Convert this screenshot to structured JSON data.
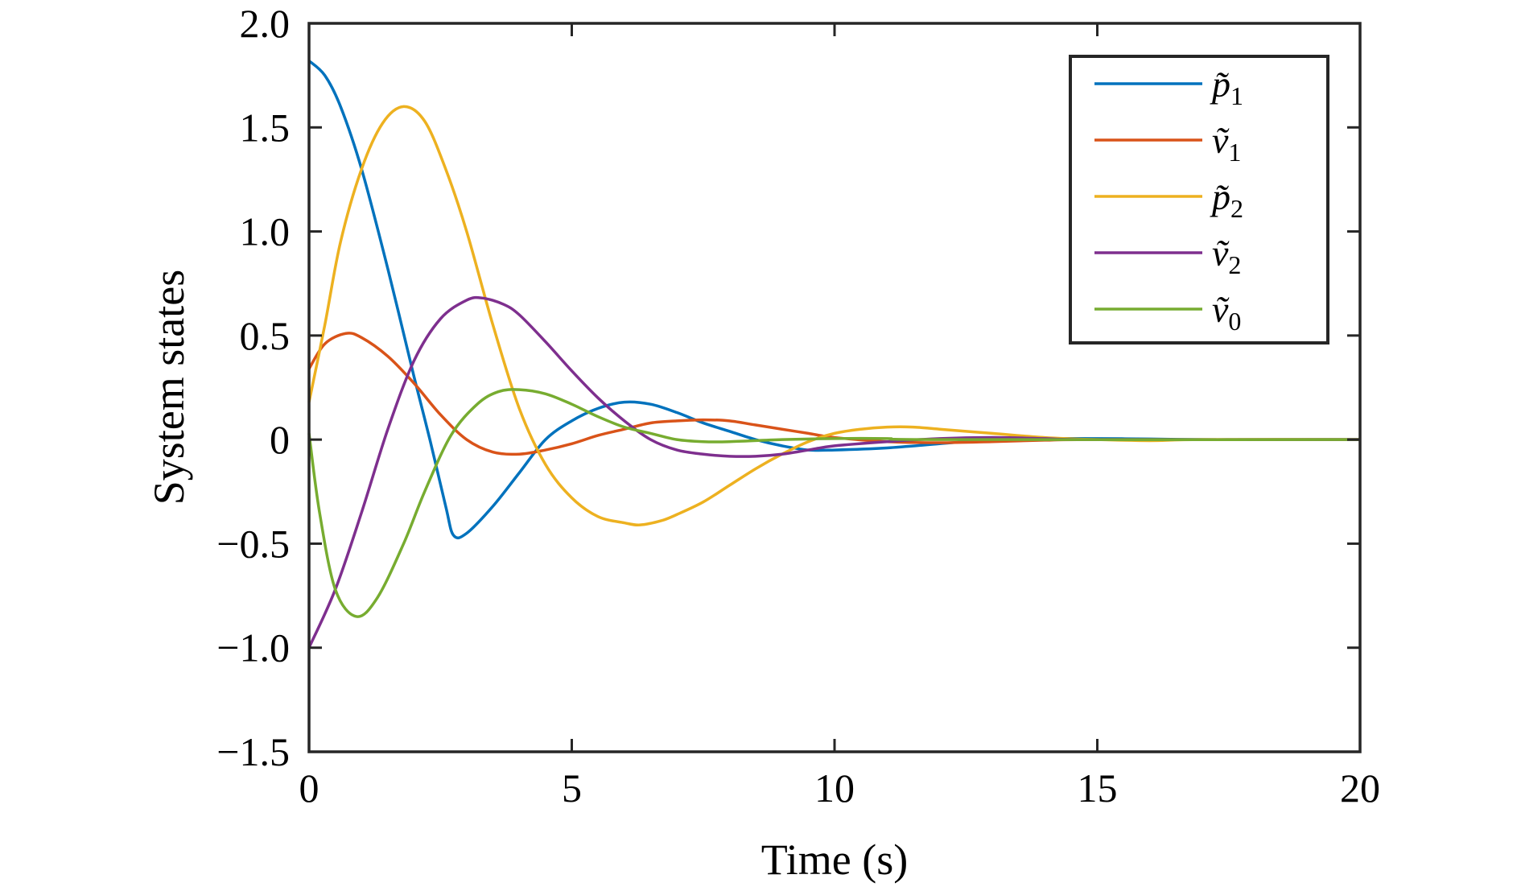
{
  "chart_data": {
    "type": "line",
    "title": "",
    "xlabel": "Time (s)",
    "ylabel": "System states",
    "xlim": [
      0,
      20
    ],
    "ylim": [
      -1.5,
      2.0
    ],
    "xticks": [
      0,
      5,
      10,
      15,
      20
    ],
    "xtick_labels": [
      "0",
      "5",
      "10",
      "15",
      "20"
    ],
    "yticks": [
      -1.5,
      -1.0,
      -0.5,
      0,
      0.5,
      1.0,
      1.5,
      2.0
    ],
    "ytick_labels": [
      "−1.5",
      "−1.0",
      "−0.5",
      "0",
      "0.5",
      "1.0",
      "1.5",
      "2.0"
    ],
    "grid": false,
    "legend_position": "top-right",
    "series": [
      {
        "name": "p̃₁",
        "legend_base": "p̃",
        "legend_sub": "1",
        "color": "#0072BD",
        "points": [
          [
            0,
            1.82
          ],
          [
            0.3,
            1.75
          ],
          [
            0.6,
            1.6
          ],
          [
            1.0,
            1.3
          ],
          [
            1.5,
            0.82
          ],
          [
            2.0,
            0.3
          ],
          [
            2.3,
            0.0
          ],
          [
            2.6,
            -0.32
          ],
          [
            2.75,
            -0.46
          ],
          [
            3.0,
            -0.45
          ],
          [
            3.5,
            -0.32
          ],
          [
            4.0,
            -0.16
          ],
          [
            4.5,
            0.0
          ],
          [
            5.0,
            0.09
          ],
          [
            5.5,
            0.15
          ],
          [
            6.0,
            0.18
          ],
          [
            6.5,
            0.17
          ],
          [
            7.0,
            0.13
          ],
          [
            7.5,
            0.08
          ],
          [
            8.0,
            0.04
          ],
          [
            8.5,
            0.0
          ],
          [
            9.0,
            -0.03
          ],
          [
            9.5,
            -0.05
          ],
          [
            10.0,
            -0.05
          ],
          [
            11.0,
            -0.04
          ],
          [
            12.0,
            -0.02
          ],
          [
            13.0,
            0.0
          ],
          [
            14.0,
            0.005
          ],
          [
            15.0,
            0.005
          ],
          [
            16.0,
            0.003
          ],
          [
            17.0,
            0.0
          ],
          [
            18.0,
            0.0
          ],
          [
            20.0,
            0.0
          ]
        ]
      },
      {
        "name": "ṽ₁",
        "legend_base": "ṽ",
        "legend_sub": "1",
        "color": "#D95319",
        "points": [
          [
            0,
            0.34
          ],
          [
            0.3,
            0.46
          ],
          [
            0.7,
            0.51
          ],
          [
            1.0,
            0.49
          ],
          [
            1.5,
            0.4
          ],
          [
            2.0,
            0.27
          ],
          [
            2.5,
            0.12
          ],
          [
            3.0,
            0.0
          ],
          [
            3.5,
            -0.06
          ],
          [
            4.0,
            -0.07
          ],
          [
            4.5,
            -0.05
          ],
          [
            5.0,
            -0.02
          ],
          [
            5.5,
            0.02
          ],
          [
            6.0,
            0.05
          ],
          [
            6.5,
            0.08
          ],
          [
            7.0,
            0.09
          ],
          [
            7.5,
            0.095
          ],
          [
            8.0,
            0.09
          ],
          [
            8.5,
            0.07
          ],
          [
            9.0,
            0.05
          ],
          [
            9.5,
            0.03
          ],
          [
            10.0,
            0.01
          ],
          [
            11.0,
            -0.01
          ],
          [
            12.0,
            -0.015
          ],
          [
            13.0,
            -0.01
          ],
          [
            14.0,
            -0.003
          ],
          [
            15.0,
            0.0
          ],
          [
            20.0,
            0.0
          ]
        ]
      },
      {
        "name": "p̃₂",
        "legend_base": "p̃",
        "legend_sub": "2",
        "color": "#EDB120",
        "points": [
          [
            0,
            0.18
          ],
          [
            0.3,
            0.55
          ],
          [
            0.6,
            0.95
          ],
          [
            1.0,
            1.3
          ],
          [
            1.4,
            1.52
          ],
          [
            1.8,
            1.6
          ],
          [
            2.2,
            1.53
          ],
          [
            2.6,
            1.3
          ],
          [
            3.0,
            1.0
          ],
          [
            3.5,
            0.55
          ],
          [
            4.0,
            0.15
          ],
          [
            4.5,
            -0.12
          ],
          [
            5.0,
            -0.28
          ],
          [
            5.5,
            -0.37
          ],
          [
            6.0,
            -0.4
          ],
          [
            6.3,
            -0.41
          ],
          [
            6.7,
            -0.39
          ],
          [
            7.0,
            -0.36
          ],
          [
            7.5,
            -0.3
          ],
          [
            8.0,
            -0.22
          ],
          [
            8.5,
            -0.14
          ],
          [
            9.0,
            -0.07
          ],
          [
            9.5,
            -0.01
          ],
          [
            10.0,
            0.03
          ],
          [
            10.5,
            0.05
          ],
          [
            11.0,
            0.06
          ],
          [
            11.5,
            0.06
          ],
          [
            12.0,
            0.05
          ],
          [
            13.0,
            0.03
          ],
          [
            14.0,
            0.01
          ],
          [
            15.0,
            0.0
          ],
          [
            16.0,
            -0.005
          ],
          [
            17.0,
            0.0
          ],
          [
            20.0,
            0.0
          ]
        ]
      },
      {
        "name": "ṽ₂",
        "legend_base": "ṽ",
        "legend_sub": "2",
        "color": "#7E2F8E",
        "points": [
          [
            0,
            -1.0
          ],
          [
            0.5,
            -0.72
          ],
          [
            1.0,
            -0.35
          ],
          [
            1.5,
            0.05
          ],
          [
            2.0,
            0.38
          ],
          [
            2.5,
            0.58
          ],
          [
            3.0,
            0.67
          ],
          [
            3.3,
            0.68
          ],
          [
            3.7,
            0.65
          ],
          [
            4.0,
            0.6
          ],
          [
            4.5,
            0.47
          ],
          [
            5.0,
            0.33
          ],
          [
            5.5,
            0.2
          ],
          [
            6.0,
            0.09
          ],
          [
            6.5,
            0.0
          ],
          [
            7.0,
            -0.05
          ],
          [
            7.5,
            -0.07
          ],
          [
            8.0,
            -0.08
          ],
          [
            8.5,
            -0.08
          ],
          [
            9.0,
            -0.07
          ],
          [
            9.5,
            -0.05
          ],
          [
            10.0,
            -0.03
          ],
          [
            11.0,
            -0.01
          ],
          [
            12.0,
            0.005
          ],
          [
            13.0,
            0.01
          ],
          [
            14.0,
            0.005
          ],
          [
            15.0,
            0.0
          ],
          [
            20.0,
            0.0
          ]
        ]
      },
      {
        "name": "ṽ₀",
        "legend_base": "ṽ",
        "legend_sub": "0",
        "color": "#77AC30",
        "points": [
          [
            0,
            0.03
          ],
          [
            0.2,
            -0.35
          ],
          [
            0.5,
            -0.72
          ],
          [
            0.9,
            -0.85
          ],
          [
            1.3,
            -0.76
          ],
          [
            1.8,
            -0.5
          ],
          [
            2.2,
            -0.25
          ],
          [
            2.7,
            0.02
          ],
          [
            3.2,
            0.17
          ],
          [
            3.6,
            0.23
          ],
          [
            4.0,
            0.24
          ],
          [
            4.5,
            0.22
          ],
          [
            5.0,
            0.17
          ],
          [
            5.5,
            0.11
          ],
          [
            6.0,
            0.06
          ],
          [
            6.5,
            0.03
          ],
          [
            7.0,
            0.0
          ],
          [
            7.5,
            -0.01
          ],
          [
            8.0,
            -0.01
          ],
          [
            9.0,
            0.0
          ],
          [
            10.0,
            0.005
          ],
          [
            11.0,
            0.005
          ],
          [
            12.0,
            0.0
          ],
          [
            20.0,
            0.0
          ]
        ]
      }
    ]
  }
}
